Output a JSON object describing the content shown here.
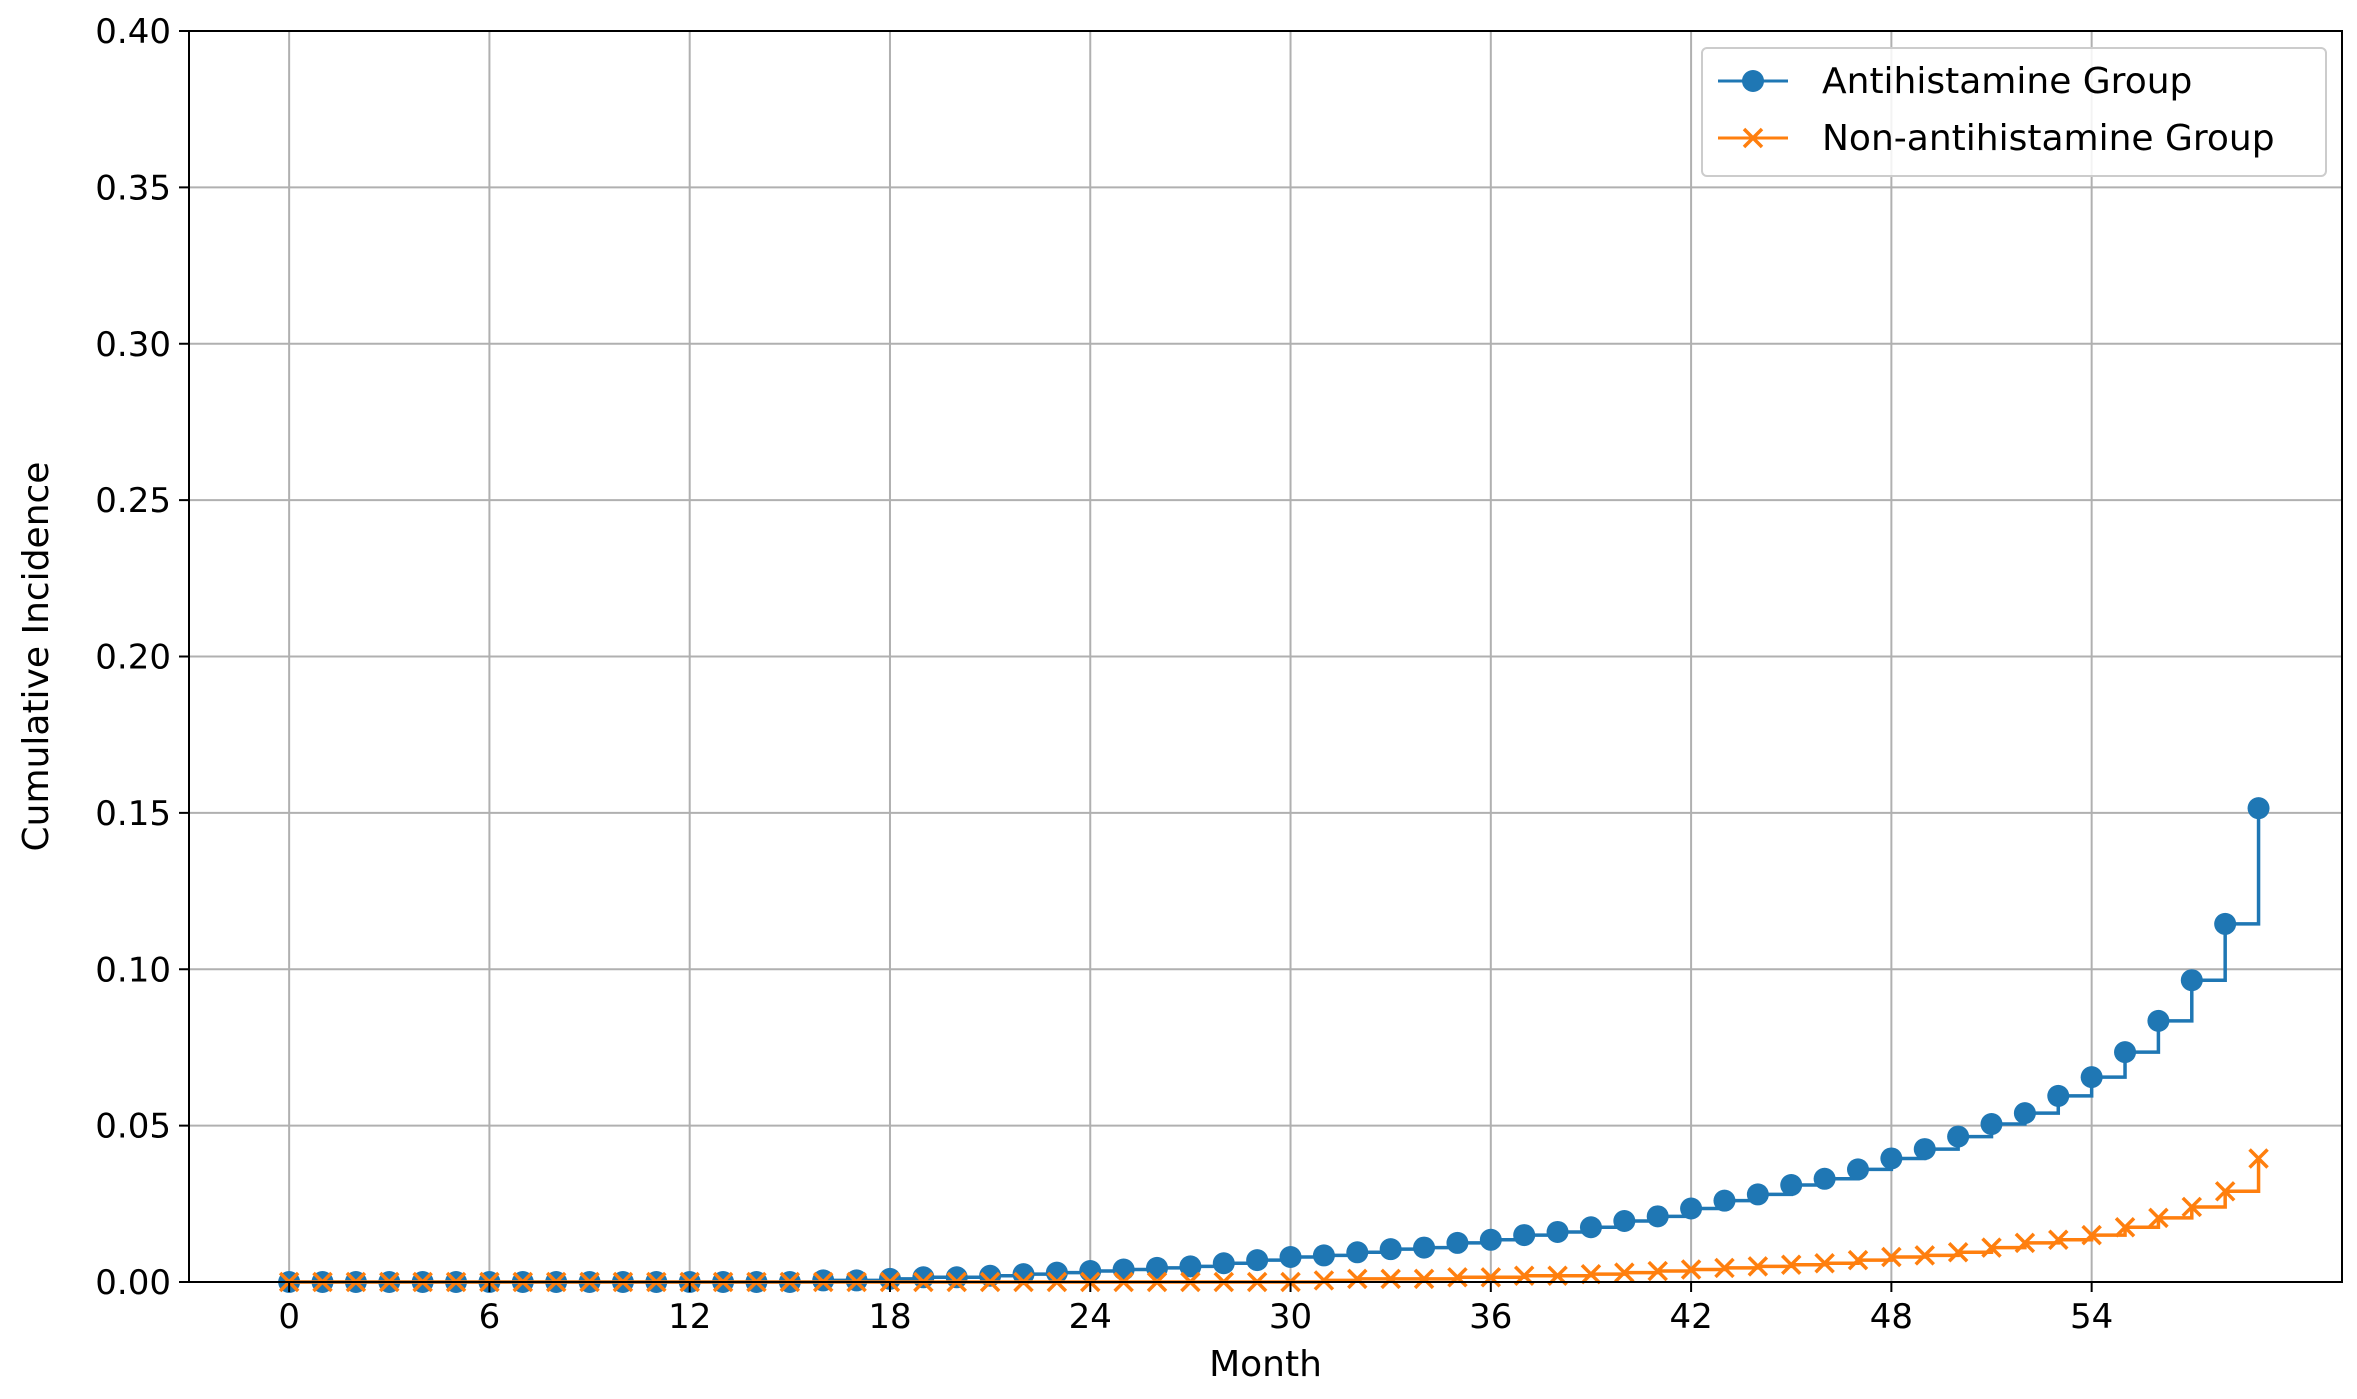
{
  "colors": {
    "series1": "#1f77b4",
    "series2": "#ff7f0e",
    "grid": "#b0b0b0",
    "axis": "#000000",
    "legend_border": "#cccccc"
  },
  "chart_data": {
    "type": "line",
    "step": "post",
    "xlabel": "Month",
    "ylabel": "Cumulative Incidence",
    "xlim": [
      -3,
      61.5
    ],
    "ylim": [
      0,
      0.4
    ],
    "xticks": [
      0,
      6,
      12,
      18,
      24,
      30,
      36,
      42,
      48,
      54
    ],
    "yticks": [
      0.0,
      0.05,
      0.1,
      0.15,
      0.2,
      0.25,
      0.3,
      0.35,
      0.4
    ],
    "ytick_labels": [
      "0.00",
      "0.05",
      "0.10",
      "0.15",
      "0.20",
      "0.25",
      "0.30",
      "0.35",
      "0.40"
    ],
    "grid": true,
    "legend_position": "top-right",
    "x": [
      0,
      1,
      2,
      3,
      4,
      5,
      6,
      7,
      8,
      9,
      10,
      11,
      12,
      13,
      14,
      15,
      16,
      17,
      18,
      19,
      20,
      21,
      22,
      23,
      24,
      25,
      26,
      27,
      28,
      29,
      30,
      31,
      32,
      33,
      34,
      35,
      36,
      37,
      38,
      39,
      40,
      41,
      42,
      43,
      44,
      45,
      46,
      47,
      48,
      49,
      50,
      51,
      52,
      53,
      54,
      55,
      56,
      57,
      58,
      59
    ],
    "series": [
      {
        "name": "Antihistamine Group",
        "marker": "circle",
        "values": [
          0.0,
          0.0,
          0.0,
          0.0,
          0.0,
          0.0,
          0.0,
          0.0,
          0.0,
          0.0,
          0.0,
          0.0,
          0.0,
          0.0,
          0.0,
          0.0,
          0.0005,
          0.0005,
          0.001,
          0.0015,
          0.0015,
          0.002,
          0.0025,
          0.003,
          0.0035,
          0.004,
          0.0045,
          0.005,
          0.006,
          0.007,
          0.008,
          0.0085,
          0.0095,
          0.0105,
          0.011,
          0.0125,
          0.0135,
          0.015,
          0.016,
          0.0175,
          0.0195,
          0.021,
          0.0235,
          0.026,
          0.028,
          0.031,
          0.033,
          0.036,
          0.0395,
          0.0425,
          0.0465,
          0.0505,
          0.054,
          0.0595,
          0.0655,
          0.0735,
          0.0835,
          0.0965,
          0.1145,
          0.1515
        ]
      },
      {
        "name": "Non-antihistamine Group",
        "marker": "x",
        "values": [
          0.0,
          0.0,
          0.0,
          0.0,
          0.0,
          0.0,
          0.0,
          0.0,
          0.0,
          0.0,
          0.0,
          0.0,
          0.0,
          0.0,
          0.0,
          0.0,
          0.0,
          0.0,
          0.0,
          0.0,
          0.0,
          0.0,
          0.0,
          0.0,
          0.0,
          0.0,
          0.0,
          0.0,
          0.0,
          0.0,
          0.0,
          0.0005,
          0.001,
          0.001,
          0.001,
          0.0015,
          0.0015,
          0.002,
          0.002,
          0.0025,
          0.003,
          0.0035,
          0.004,
          0.0045,
          0.005,
          0.0055,
          0.006,
          0.007,
          0.008,
          0.0085,
          0.0095,
          0.011,
          0.0125,
          0.0135,
          0.015,
          0.0175,
          0.0205,
          0.024,
          0.029,
          0.0395
        ]
      }
    ]
  }
}
